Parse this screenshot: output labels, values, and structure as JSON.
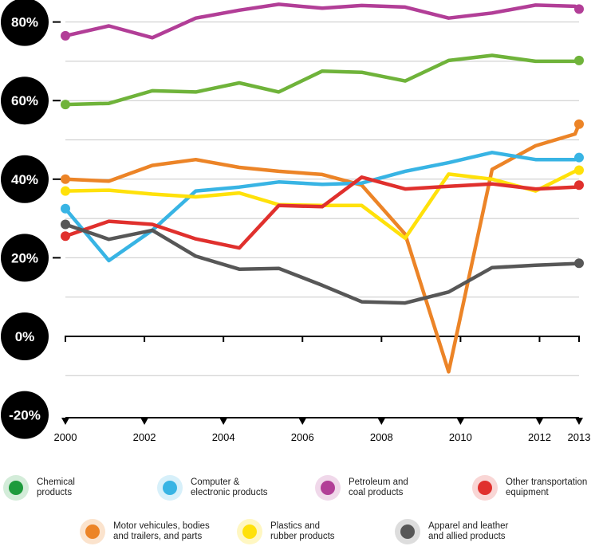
{
  "chart_data": {
    "type": "line",
    "x_ticks": [
      2000,
      2002,
      2004,
      2006,
      2008,
      2010,
      2012,
      2013
    ],
    "y_ticks": [
      {
        "value": 80,
        "label": "80%"
      },
      {
        "value": 60,
        "label": "60%"
      },
      {
        "value": 40,
        "label": "40%"
      },
      {
        "value": 20,
        "label": "20%"
      },
      {
        "value": 0,
        "label": "0%"
      },
      {
        "value": -20,
        "label": "-20%"
      }
    ],
    "xlim": [
      2000,
      2013
    ],
    "ylim": [
      -20,
      85
    ],
    "grid": true,
    "legend_position": "bottom",
    "series": [
      {
        "name": "Petroleum and coal products",
        "color": "#b23e97",
        "x": [
          2000,
          2001.1,
          2002.2,
          2003.3,
          2004.4,
          2005.4,
          2006.5,
          2007.5,
          2008.6,
          2009.7,
          2010.8,
          2011.9,
          2012.9,
          2013
        ],
        "y": [
          76.5,
          79,
          76,
          81,
          83,
          84.5,
          83.5,
          84.2,
          83.8,
          81,
          82.3,
          84.3,
          84,
          83.3
        ]
      },
      {
        "name": "Chemical products",
        "color": "#6fb33a",
        "x": [
          2000,
          2001.1,
          2002.2,
          2003.3,
          2004.4,
          2005.4,
          2006.5,
          2007.5,
          2008.6,
          2009.7,
          2010.8,
          2011.9,
          2012.9,
          2013
        ],
        "y": [
          59,
          59.3,
          62.5,
          62.2,
          64.5,
          62.2,
          67.5,
          67.2,
          65,
          70.2,
          71.5,
          70,
          70,
          70.2
        ]
      },
      {
        "name": "Motor vehicules, bodies and trailers, and parts",
        "color": "#ec8427",
        "x": [
          2000,
          2001.1,
          2002.2,
          2003.3,
          2004.4,
          2005.4,
          2006.5,
          2007.5,
          2008.6,
          2009.7,
          2010.8,
          2011.9,
          2012.9,
          2013
        ],
        "y": [
          40,
          39.5,
          43.5,
          45,
          43,
          42,
          41.2,
          38.5,
          26,
          -9,
          42.5,
          48.5,
          51.5,
          54
        ]
      },
      {
        "name": "Computer & electronic products",
        "color": "#38b4e4",
        "x": [
          2000,
          2001.1,
          2002.2,
          2003.3,
          2004.4,
          2005.4,
          2006.5,
          2007.5,
          2008.6,
          2009.7,
          2010.8,
          2011.9,
          2012.9,
          2013
        ],
        "y": [
          32.5,
          19.3,
          27,
          37,
          38,
          39.3,
          38.7,
          39,
          42,
          44.2,
          46.8,
          45,
          45,
          45.5
        ]
      },
      {
        "name": "Plastics and rubber products",
        "color": "#ffe10a",
        "x": [
          2000,
          2001.1,
          2002.2,
          2003.3,
          2004.4,
          2005.4,
          2006.5,
          2007.5,
          2008.6,
          2009.7,
          2010.8,
          2011.9,
          2012.9,
          2013
        ],
        "y": [
          37,
          37.2,
          36.2,
          35.5,
          36.5,
          33.5,
          33.3,
          33.3,
          25,
          41.3,
          40,
          37,
          42,
          42.3
        ]
      },
      {
        "name": "Other transportation equipment",
        "color": "#e0302d",
        "x": [
          2000,
          2001.1,
          2002.2,
          2003.3,
          2004.4,
          2005.4,
          2006.5,
          2007.5,
          2008.6,
          2009.7,
          2010.8,
          2011.9,
          2012.9,
          2013
        ],
        "y": [
          25.5,
          29.3,
          28.5,
          24.8,
          22.5,
          33.3,
          33,
          40.5,
          37.5,
          38.2,
          38.8,
          37.5,
          38,
          38.5
        ]
      },
      {
        "name": "Apparel and leather and allied products",
        "color": "#575757",
        "x": [
          2000,
          2001.1,
          2002.2,
          2003.3,
          2004.4,
          2005.4,
          2006.5,
          2007.5,
          2008.6,
          2009.7,
          2010.8,
          2011.9,
          2012.9,
          2013
        ],
        "y": [
          28.5,
          24.7,
          27,
          20.4,
          17.1,
          17.3,
          13,
          8.8,
          8.5,
          11.3,
          17.5,
          18.1,
          18.5,
          18.6
        ]
      }
    ]
  },
  "legend": [
    {
      "label": "Chemical\nproducts",
      "color": "#1d9a3c",
      "halo": "#d3ecd9"
    },
    {
      "label": "Computer &\nelectronic products",
      "color": "#38b4e4",
      "halo": "#d7f0fa"
    },
    {
      "label": "Petroleum and\ncoal products",
      "color": "#b23e97",
      "halo": "#f0d8ea"
    },
    {
      "label": "Other transportation\nequipment",
      "color": "#e0302d",
      "halo": "#f9d6d5"
    },
    {
      "label": "Motor vehicules, bodies\nand trailers, and parts",
      "color": "#ec8427",
      "halo": "#fbe3cd"
    },
    {
      "label": "Plastics and\nrubber products",
      "color": "#ffe10a",
      "halo": "#fff7c2"
    },
    {
      "label": "Apparel and leather\nand allied products",
      "color": "#575757",
      "halo": "#dddddd"
    }
  ]
}
